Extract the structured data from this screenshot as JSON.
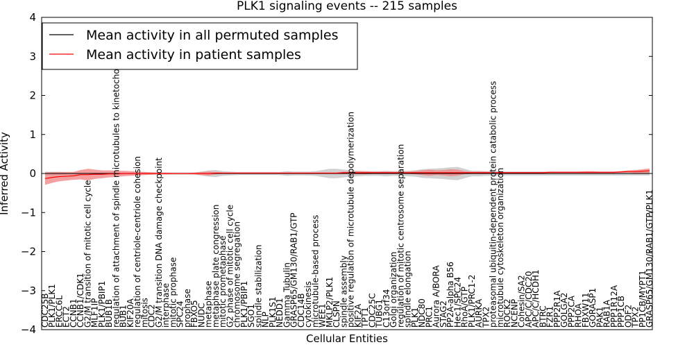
{
  "chart_data": {
    "type": "line",
    "title": "PLK1 signaling events -- 215 samples",
    "xlabel": "Cellular Entities",
    "ylabel": "Inferred Activity",
    "ylim": [
      -4,
      4
    ],
    "yticks": [
      -4,
      -3,
      -2,
      -1,
      0,
      1,
      2,
      3,
      4
    ],
    "legend": {
      "position": "top-left",
      "entries": [
        "Mean activity in all permuted samples",
        "Mean activity in patient samples"
      ]
    },
    "colors": {
      "permuted": "#000000",
      "patient": "#ff0000",
      "patient_band": "#f08080",
      "permuted_band": "#bdbdbd"
    },
    "categories": [
      "CDC25B",
      "PLK1/PLK1",
      "ERCC6L",
      "ECT2",
      "CCNB1",
      "CCNB1/CDK1",
      "G2/M transition of mitotic cell cycle",
      "MLF1IP",
      "PLK1/PBIP1",
      "BUB1B",
      "regulation of attachment of spindle microtubules to kinetochore",
      "BUB1",
      "KIF20A",
      "regulation of centriole-centriole cohesion",
      "mitosis",
      "CDC2",
      "G2/M transition DNA damage checkpoint",
      "interphase",
      "mitotic prophase",
      "SPC24",
      "prophase",
      "FBXO5",
      "NUDC",
      "metaphase",
      "metaphase plate congression",
      "mitotic prometaphase",
      "G2 phase of mitotic cell cycle",
      "chromosome segregation",
      "PLK1/PBIP1",
      "SGO1",
      "spindle stabilization",
      "NLP",
      "PLK1S1",
      "NEDD1",
      "Gamma Tubulin",
      "GRASP65/GM130/RAB1/GTP",
      "CDC14B",
      "cytokinesis",
      "microtubule-based process",
      "WEE1",
      "MKLP2/PLK1",
      "CLSPN",
      "spindle assembly",
      "positive regulation of microtubule depolymerization",
      "KIF2A",
      "TPT1",
      "CDC25C",
      "TUBG1",
      "C13orf34",
      "Golgi organization",
      "regulation of mitotic centrosome separation",
      "spindle elongation",
      "PLK1",
      "NDC80",
      "PRC1",
      "Aurora A/BORA",
      "STAG2",
      "PP2A-alpha B56",
      "Hec1/SPC24",
      "RhoA/GTP",
      "PLK1/PRC1-2",
      "AURKA",
      "TPX2",
      "proteasomal ubiquitin-dependent protein catabolic process",
      "microtubule cytoskeleton organization",
      "ROCK2",
      "NCENP",
      "Cohesin/SA2",
      "APC/C/CDC20",
      "APC/C/HCDH1",
      "BTRC",
      "FZR1",
      "PPP2R1A",
      "GOLGA2",
      "PPP2CA",
      "RHOA",
      "FBXW11",
      "GORASP1",
      "PAK1",
      "RAB1A",
      "PPP1R12A",
      "PPP1CB",
      "ODF2",
      "TPX2",
      "PP1CB/MYPT1",
      "GRASP65/GM130/RAB1/GTP/PLK1"
    ],
    "series": [
      {
        "name": "Mean activity in all permuted samples",
        "values": [
          0,
          0,
          0,
          0,
          0,
          0,
          0,
          0,
          0,
          0,
          0,
          0,
          0,
          0,
          0,
          0,
          0,
          0,
          0,
          0,
          0,
          0,
          0,
          0,
          0,
          0,
          0,
          0,
          0,
          0,
          0,
          0,
          0,
          0,
          0,
          0,
          0,
          0,
          0,
          0,
          0,
          0,
          0,
          0,
          0,
          0,
          0,
          0,
          0,
          0,
          0,
          0,
          0,
          0,
          0,
          0,
          0,
          0,
          0,
          0,
          0,
          0,
          0,
          0,
          0,
          0,
          0,
          0,
          0,
          0,
          0,
          0,
          0,
          0,
          0,
          0,
          0,
          0,
          0,
          0,
          0,
          0,
          0,
          0,
          0,
          0
        ]
      },
      {
        "name": "Mean activity in patient samples",
        "values": [
          -0.13,
          -0.1,
          -0.08,
          -0.07,
          -0.06,
          -0.03,
          -0.03,
          -0.02,
          -0.02,
          -0.01,
          -0.01,
          0,
          0,
          0,
          0,
          0,
          0,
          0,
          0,
          0,
          0,
          0,
          0,
          0,
          0.01,
          0.01,
          0.01,
          0.01,
          0.01,
          0.01,
          0.01,
          0.01,
          0.01,
          0.01,
          0.01,
          0.01,
          0.01,
          0.01,
          0.01,
          0.01,
          0.01,
          0.01,
          0.02,
          0.02,
          0.02,
          0.02,
          0.02,
          0.02,
          0.02,
          0.02,
          0.02,
          0.02,
          0.02,
          0.02,
          0.02,
          0.02,
          0.02,
          0.02,
          0.02,
          0.02,
          0.02,
          0.02,
          0.02,
          0.02,
          0.02,
          0.02,
          0.02,
          0.02,
          0.02,
          0.02,
          0.02,
          0.03,
          0.03,
          0.03,
          0.03,
          0.03,
          0.03,
          0.03,
          0.03,
          0.03,
          0.03,
          0.04,
          0.05,
          0.05,
          0.06,
          0.07
        ]
      }
    ],
    "band_patient_halfwidth": [
      0.16,
      0.14,
      0.12,
      0.11,
      0.1,
      0.12,
      0.15,
      0.12,
      0.1,
      0.09,
      0.08,
      0.07,
      0.06,
      0.05,
      0.04,
      0.03,
      0.02,
      0.02,
      0.01,
      0.01,
      0.01,
      0.02,
      0.04,
      0.05,
      0.03,
      0.02,
      0.02,
      0.02,
      0.02,
      0.02,
      0.02,
      0.02,
      0.02,
      0.02,
      0.02,
      0.02,
      0.02,
      0.02,
      0.02,
      0.02,
      0.02,
      0.02,
      0.03,
      0.03,
      0.04,
      0.04,
      0.03,
      0.03,
      0.03,
      0.03,
      0.03,
      0.03,
      0.04,
      0.06,
      0.08,
      0.06,
      0.07,
      0.09,
      0.08,
      0.04,
      0.03,
      0.03,
      0.03,
      0.02,
      0.02,
      0.02,
      0.02,
      0.02,
      0.02,
      0.02,
      0.02,
      0.02,
      0.02,
      0.02,
      0.02,
      0.02,
      0.03,
      0.03,
      0.02,
      0.02,
      0.02,
      0.02,
      0.03,
      0.04,
      0.05,
      0.06
    ],
    "band_permuted_halfwidth": [
      0.05,
      0.04,
      0.04,
      0.03,
      0.03,
      0.03,
      0.03,
      0.03,
      0.03,
      0.03,
      0.03,
      0.03,
      0.03,
      0.03,
      0.03,
      0.03,
      0.03,
      0.03,
      0.03,
      0.03,
      0.03,
      0.03,
      0.05,
      0.08,
      0.09,
      0.06,
      0.05,
      0.04,
      0.04,
      0.04,
      0.04,
      0.04,
      0.04,
      0.04,
      0.06,
      0.05,
      0.05,
      0.05,
      0.06,
      0.09,
      0.12,
      0.12,
      0.1,
      0.08,
      0.07,
      0.06,
      0.06,
      0.06,
      0.07,
      0.06,
      0.06,
      0.07,
      0.08,
      0.11,
      0.12,
      0.13,
      0.14,
      0.16,
      0.17,
      0.12,
      0.07,
      0.07,
      0.06,
      0.06,
      0.06,
      0.05,
      0.05,
      0.05,
      0.05,
      0.05,
      0.05,
      0.05,
      0.05,
      0.05,
      0.05,
      0.05,
      0.05,
      0.05,
      0.05,
      0.05,
      0.05,
      0.05,
      0.05,
      0.05,
      0.05,
      0.05
    ]
  }
}
